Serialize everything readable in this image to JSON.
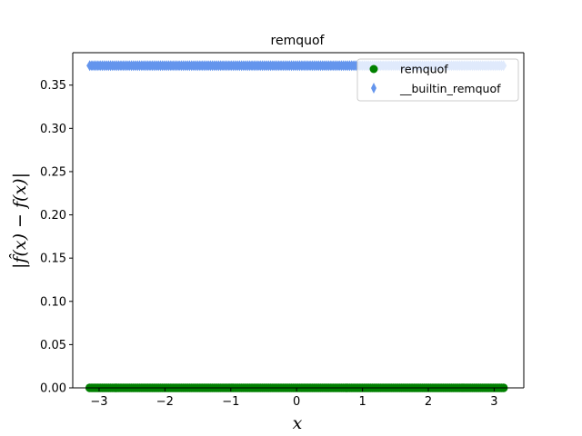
{
  "chart_data": {
    "type": "scatter",
    "title": "remquof",
    "xlabel": "x",
    "ylabel": "|f̂(x) − f(x)|",
    "xlim": [
      -3.4,
      3.45
    ],
    "ylim": [
      0.0,
      0.3875
    ],
    "xticks": [
      -3,
      -2,
      -1,
      0,
      1,
      2,
      3
    ],
    "xtick_labels": [
      "−3",
      "−2",
      "−1",
      "0",
      "1",
      "2",
      "3"
    ],
    "yticks": [
      0.0,
      0.05,
      0.1,
      0.15,
      0.2,
      0.25,
      0.3,
      0.35
    ],
    "ytick_labels": [
      "0.00",
      "0.05",
      "0.10",
      "0.15",
      "0.20",
      "0.25",
      "0.30",
      "0.35"
    ],
    "grid": false,
    "legend_position": "top-right",
    "x_range": [
      -3.14159,
      3.14159
    ],
    "series": [
      {
        "name": "remquof",
        "marker": "circle",
        "color": "#008000",
        "y": 0.0
      },
      {
        "name": "__builtin_remquof",
        "marker": "diamond",
        "color": "#6495ed",
        "y": 0.3725
      }
    ]
  }
}
